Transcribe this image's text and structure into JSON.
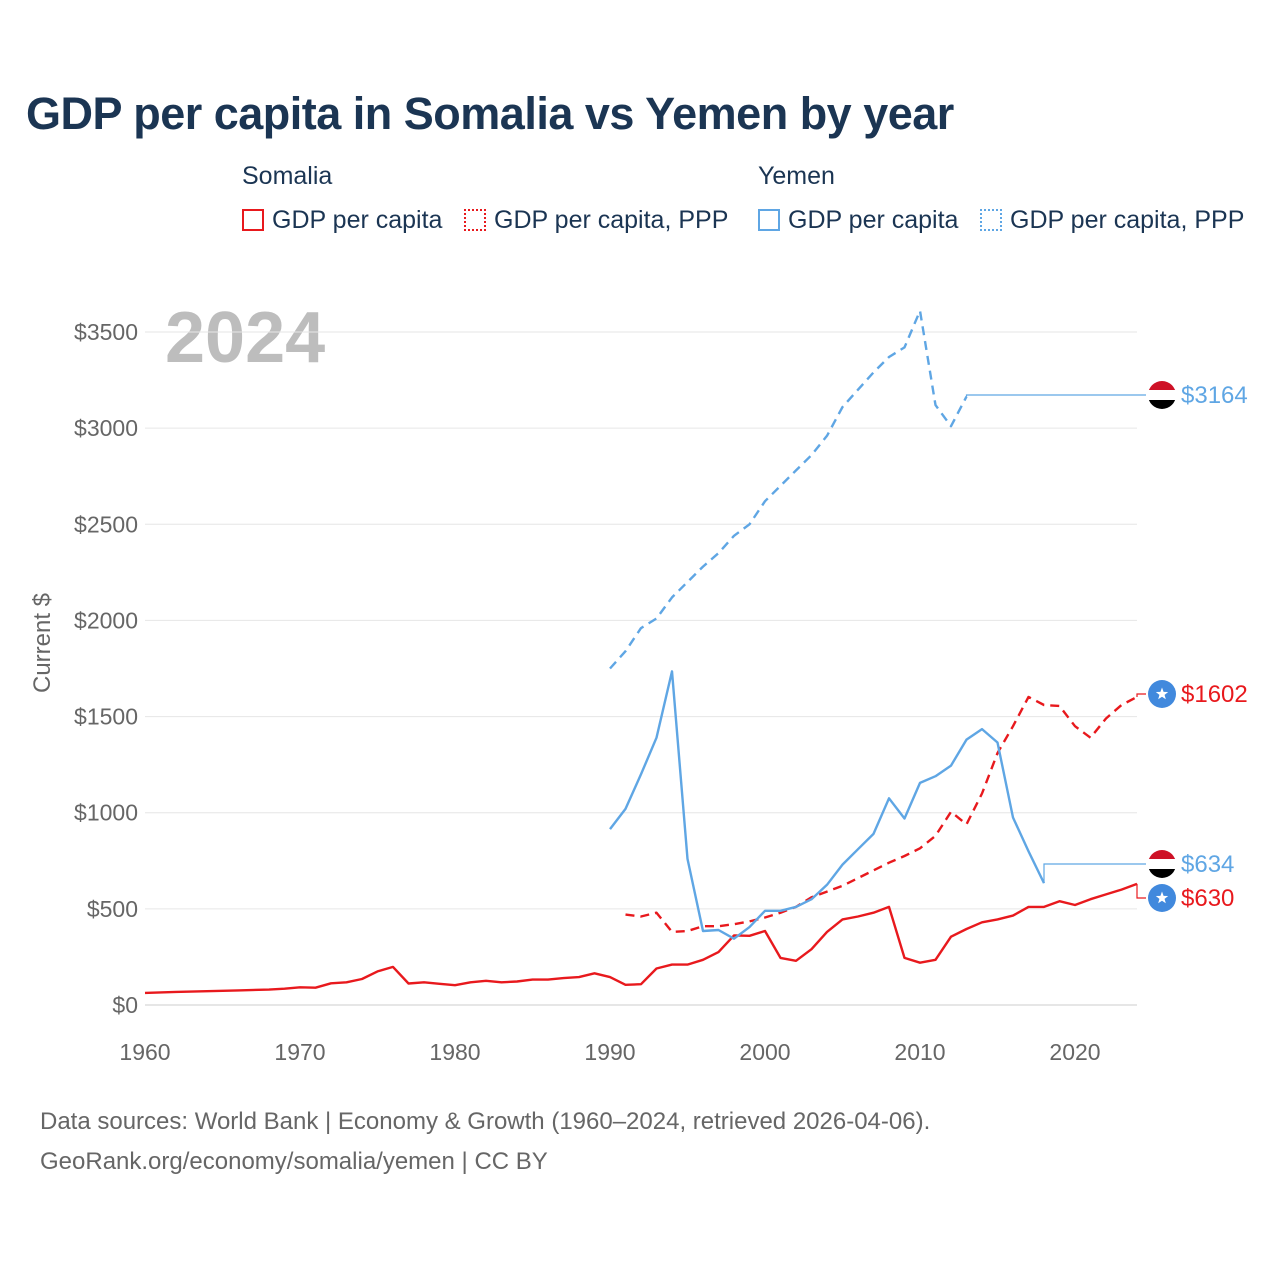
{
  "title": "GDP per capita in Somalia vs Yemen by year",
  "legend": {
    "somalia": {
      "name": "Somalia",
      "gdp": "GDP per capita",
      "ppp": "GDP per capita, PPP"
    },
    "yemen": {
      "name": "Yemen",
      "gdp": "GDP per capita",
      "ppp": "GDP per capita, PPP"
    }
  },
  "colors": {
    "somalia": "#e8191d",
    "yemen": "#5fa6e4",
    "text": "#1b3553",
    "grid": "#e6e6e6"
  },
  "source": {
    "line1": "Data sources: World Bank | Economy & Growth (1960–2024, retrieved 2026-04-06).",
    "line2": "GeoRank.org/economy/somalia/yemen | CC BY"
  },
  "chart_data": {
    "type": "line",
    "ylabel": "Current $",
    "year_label": "2024",
    "xlim": [
      1960,
      2024
    ],
    "ylim": [
      0,
      3500
    ],
    "xticks": [
      1960,
      1970,
      1980,
      1990,
      2000,
      2010,
      2020
    ],
    "yticks": [
      0,
      500,
      1000,
      1500,
      2000,
      2500,
      3000,
      3500
    ],
    "ytick_labels": [
      "$0",
      "$500",
      "$1000",
      "$1500",
      "$2000",
      "$2500",
      "$3000",
      "$3500"
    ],
    "series": [
      {
        "name": "Somalia GDP per capita",
        "country": "somalia",
        "dashed": false,
        "x": [
          1960,
          1962,
          1964,
          1966,
          1968,
          1969,
          1970,
          1971,
          1972,
          1973,
          1974,
          1975,
          1976,
          1977,
          1978,
          1979,
          1980,
          1981,
          1982,
          1983,
          1984,
          1985,
          1986,
          1987,
          1988,
          1989,
          1990,
          1991,
          1992,
          1993,
          1994,
          1995,
          1996,
          1997,
          1998,
          1999,
          2000,
          2001,
          2002,
          2003,
          2004,
          2005,
          2006,
          2007,
          2008,
          2009,
          2010,
          2011,
          2012,
          2013,
          2014,
          2015,
          2016,
          2017,
          2018,
          2019,
          2020,
          2021,
          2022,
          2023,
          2024
        ],
        "values": [
          63,
          68,
          72,
          76,
          80,
          85,
          92,
          90,
          113,
          118,
          135,
          175,
          198,
          112,
          118,
          110,
          103,
          118,
          126,
          118,
          122,
          132,
          132,
          140,
          145,
          165,
          145,
          105,
          108,
          190,
          210,
          210,
          235,
          275,
          362,
          360,
          385,
          245,
          230,
          290,
          380,
          445,
          460,
          480,
          510,
          245,
          220,
          235,
          355,
          395,
          430,
          445,
          465,
          510,
          510,
          540,
          520,
          550,
          575,
          600,
          630
        ],
        "end_label": "$630",
        "end_value": 630,
        "flag": "somalia"
      },
      {
        "name": "Somalia GDP per capita, PPP",
        "country": "somalia",
        "dashed": true,
        "x": [
          1991,
          1992,
          1993,
          1994,
          1995,
          1996,
          1997,
          1998,
          1999,
          2000,
          2001,
          2002,
          2003,
          2004,
          2005,
          2006,
          2007,
          2008,
          2009,
          2010,
          2011,
          2012,
          2013,
          2014,
          2015,
          2016,
          2017,
          2018,
          2019,
          2020,
          2021,
          2022,
          2023,
          2024
        ],
        "values": [
          470,
          460,
          480,
          380,
          385,
          410,
          410,
          420,
          435,
          455,
          480,
          510,
          560,
          590,
          620,
          660,
          700,
          740,
          775,
          815,
          880,
          1005,
          940,
          1100,
          1310,
          1450,
          1602,
          1560,
          1555,
          1450,
          1390,
          1490,
          1560,
          1602
        ],
        "end_label": "$1602",
        "end_value": 1602,
        "flag": "somalia"
      },
      {
        "name": "Yemen GDP per capita",
        "country": "yemen",
        "dashed": false,
        "x": [
          1990,
          1991,
          1992,
          1993,
          1994,
          1995,
          1996,
          1997,
          1998,
          1999,
          2000,
          2001,
          2002,
          2003,
          2004,
          2005,
          2006,
          2007,
          2008,
          2009,
          2010,
          2011,
          2012,
          2013,
          2014,
          2015,
          2016,
          2017,
          2018
        ],
        "values": [
          915,
          1020,
          1200,
          1390,
          1735,
          760,
          385,
          390,
          345,
          405,
          490,
          490,
          510,
          550,
          625,
          730,
          810,
          890,
          1075,
          970,
          1155,
          1190,
          1245,
          1380,
          1435,
          1365,
          975,
          800,
          634
        ],
        "end_label": "$634",
        "end_value": 634,
        "flag": "yemen"
      },
      {
        "name": "Yemen GDP per capita, PPP",
        "country": "yemen",
        "dashed": true,
        "x": [
          1990,
          1991,
          1992,
          1993,
          1994,
          1995,
          1996,
          1997,
          1998,
          1999,
          2000,
          2001,
          2002,
          2003,
          2004,
          2005,
          2006,
          2007,
          2008,
          2009,
          2010,
          2011,
          2012,
          2013
        ],
        "values": [
          1750,
          1840,
          1960,
          2010,
          2120,
          2200,
          2280,
          2350,
          2440,
          2500,
          2620,
          2700,
          2780,
          2860,
          2960,
          3110,
          3200,
          3290,
          3370,
          3420,
          3610,
          3120,
          3010,
          3164
        ],
        "end_label": "$3164",
        "end_value": 3164,
        "flag": "yemen"
      }
    ]
  }
}
